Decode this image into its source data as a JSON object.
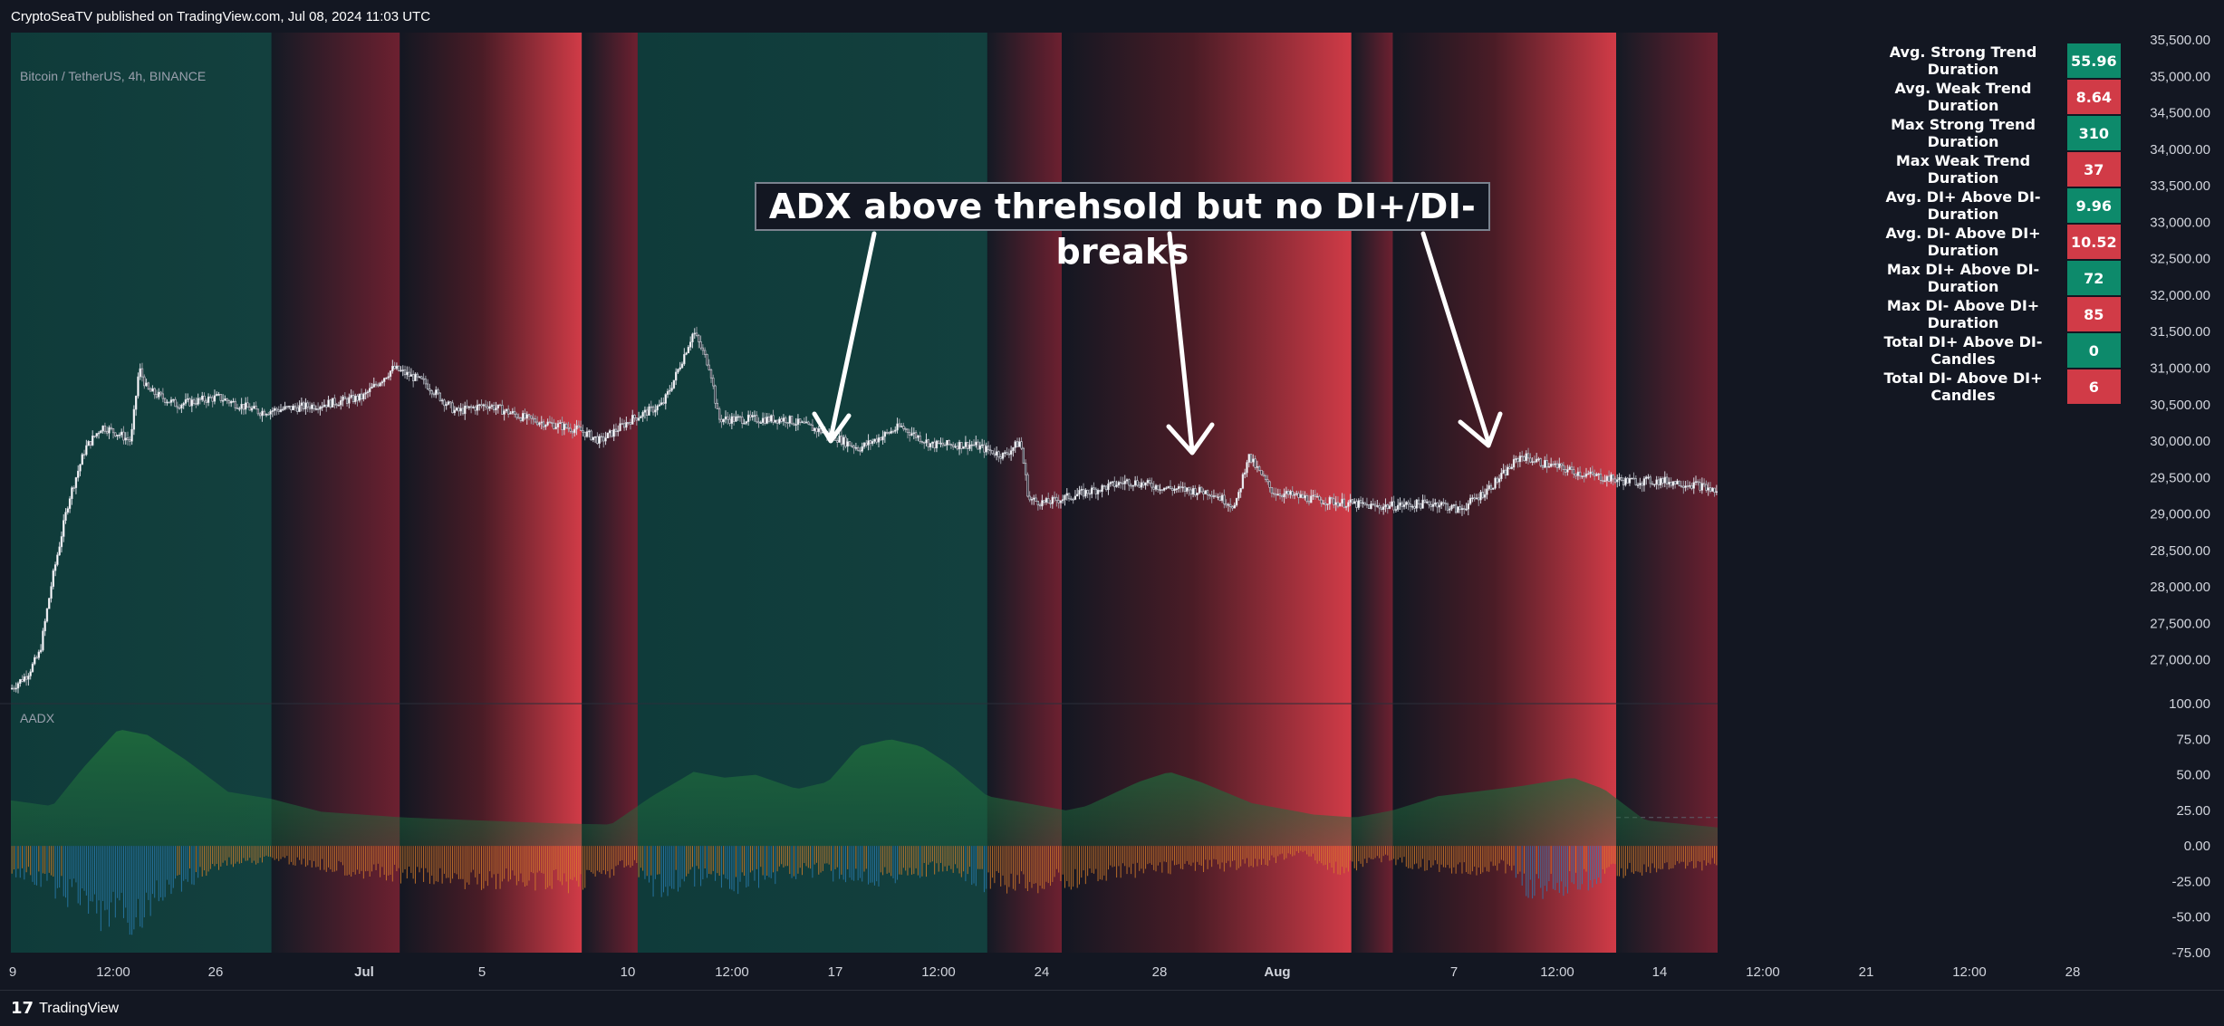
{
  "header": {
    "published": "CryptoSeaTV published on TradingView.com, Jul 08, 2024 11:03 UTC"
  },
  "footer": {
    "logo_mark": "17",
    "logo_text": "TradingView"
  },
  "symbol_label": "Bitcoin / TetherUS, 4h, BINANCE",
  "indicator_label": "AADX",
  "annotation": {
    "text": "ADX above threhsold but no DI+/DI- breaks"
  },
  "stats_table": [
    {
      "label": "Avg. Strong Trend Duration",
      "value": "55.96",
      "color": "green"
    },
    {
      "label": "Avg. Weak Trend Duration",
      "value": "8.64",
      "color": "red"
    },
    {
      "label": "Max Strong Trend Duration",
      "value": "310",
      "color": "green"
    },
    {
      "label": "Max Weak Trend Duration",
      "value": "37",
      "color": "red"
    },
    {
      "label": "Avg. DI+ Above DI- Duration",
      "value": "9.96",
      "color": "green"
    },
    {
      "label": "Avg. DI- Above DI+ Duration",
      "value": "10.52",
      "color": "red"
    },
    {
      "label": "Max DI+ Above DI- Duration",
      "value": "72",
      "color": "green"
    },
    {
      "label": "Max DI- Above DI+ Duration",
      "value": "85",
      "color": "red"
    },
    {
      "label": "Total DI+ Above DI- Candles",
      "value": "0",
      "color": "green"
    },
    {
      "label": "Total DI- Above DI+ Candles",
      "value": "6",
      "color": "red"
    }
  ],
  "colors": {
    "green": "#0d8a6b",
    "red": "#d13b47",
    "background": "#131722"
  },
  "chart_data": [
    {
      "type": "candlestick",
      "title": "Bitcoin / TetherUS, 4h, BINANCE",
      "ylim": [
        26400,
        35600
      ],
      "y_ticks": [
        "35,500.00",
        "35,000.00",
        "34,500.00",
        "34,000.00",
        "33,500.00",
        "33,000.00",
        "32,500.00",
        "32,000.00",
        "31,500.00",
        "31,000.00",
        "30,500.00",
        "30,000.00",
        "29,500.00",
        "29,000.00",
        "28,500.00",
        "28,000.00",
        "27,500.00",
        "27,000.00"
      ],
      "x_ticks": [
        "9",
        "12:00",
        "26",
        "Jul",
        "5",
        "10",
        "12:00",
        "17",
        "12:00",
        "24",
        "28",
        "Aug",
        "7",
        "12:00",
        "14",
        "12:00",
        "21",
        "12:00",
        "28"
      ],
      "price_path": [
        [
          0,
          26600
        ],
        [
          8,
          26800
        ],
        [
          14,
          27100
        ],
        [
          20,
          28100
        ],
        [
          28,
          29200
        ],
        [
          36,
          29900
        ],
        [
          44,
          30200
        ],
        [
          52,
          30100
        ],
        [
          58,
          30000
        ],
        [
          62,
          31000
        ],
        [
          66,
          30700
        ],
        [
          80,
          30500
        ],
        [
          100,
          30600
        ],
        [
          120,
          30400
        ],
        [
          150,
          30500
        ],
        [
          170,
          30600
        ],
        [
          185,
          31000
        ],
        [
          200,
          30800
        ],
        [
          215,
          30400
        ],
        [
          230,
          30500
        ],
        [
          250,
          30300
        ],
        [
          275,
          30150
        ],
        [
          285,
          30000
        ],
        [
          300,
          30300
        ],
        [
          315,
          30500
        ],
        [
          320,
          30800
        ],
        [
          330,
          31500
        ],
        [
          338,
          31000
        ],
        [
          342,
          30300
        ],
        [
          355,
          30300
        ],
        [
          375,
          30300
        ],
        [
          395,
          30100
        ],
        [
          410,
          29900
        ],
        [
          430,
          30200
        ],
        [
          445,
          29950
        ],
        [
          465,
          29950
        ],
        [
          480,
          29800
        ],
        [
          488,
          30000
        ],
        [
          492,
          29200
        ],
        [
          500,
          29150
        ],
        [
          520,
          29300
        ],
        [
          540,
          29450
        ],
        [
          560,
          29350
        ],
        [
          580,
          29300
        ],
        [
          592,
          29100
        ],
        [
          598,
          29800
        ],
        [
          610,
          29300
        ],
        [
          630,
          29200
        ],
        [
          660,
          29100
        ],
        [
          690,
          29150
        ],
        [
          700,
          29050
        ],
        [
          710,
          29250
        ],
        [
          720,
          29500
        ],
        [
          730,
          29800
        ],
        [
          740,
          29700
        ],
        [
          760,
          29550
        ],
        [
          780,
          29450
        ],
        [
          800,
          29450
        ],
        [
          815,
          29400
        ],
        [
          825,
          29300
        ]
      ],
      "background_zones": [
        {
          "from": 0,
          "to": 126,
          "state": "strong_up"
        },
        {
          "from": 126,
          "to": 188,
          "state": "weak"
        },
        {
          "from": 188,
          "to": 276,
          "state": "strong_down"
        },
        {
          "from": 276,
          "to": 303,
          "state": "weak"
        },
        {
          "from": 303,
          "to": 472,
          "state": "strong_up"
        },
        {
          "from": 472,
          "to": 508,
          "state": "weak"
        },
        {
          "from": 508,
          "to": 648,
          "state": "strong_down"
        },
        {
          "from": 648,
          "to": 668,
          "state": "weak"
        },
        {
          "from": 668,
          "to": 776,
          "state": "strong_down"
        },
        {
          "from": 776,
          "to": 825,
          "state": "weak"
        }
      ]
    },
    {
      "type": "area",
      "title": "AADX",
      "ylim": [
        -75,
        100
      ],
      "y_ticks": [
        "100.00",
        "75.00",
        "50.00",
        "25.00",
        "0.00",
        "-25.00",
        "-50.00",
        "-75.00"
      ],
      "threshold": 20,
      "adx_path": [
        [
          0,
          32
        ],
        [
          20,
          28
        ],
        [
          35,
          55
        ],
        [
          52,
          82
        ],
        [
          66,
          78
        ],
        [
          85,
          60
        ],
        [
          105,
          38
        ],
        [
          126,
          33
        ],
        [
          150,
          24
        ],
        [
          190,
          20
        ],
        [
          260,
          16
        ],
        [
          290,
          15
        ],
        [
          310,
          35
        ],
        [
          330,
          52
        ],
        [
          345,
          48
        ],
        [
          360,
          50
        ],
        [
          380,
          40
        ],
        [
          395,
          45
        ],
        [
          410,
          70
        ],
        [
          425,
          75
        ],
        [
          440,
          70
        ],
        [
          455,
          56
        ],
        [
          472,
          35
        ],
        [
          510,
          25
        ],
        [
          520,
          28
        ],
        [
          545,
          45
        ],
        [
          560,
          52
        ],
        [
          575,
          45
        ],
        [
          600,
          30
        ],
        [
          630,
          22
        ],
        [
          650,
          20
        ],
        [
          668,
          25
        ],
        [
          690,
          35
        ],
        [
          730,
          42
        ],
        [
          755,
          48
        ],
        [
          770,
          40
        ],
        [
          790,
          18
        ],
        [
          825,
          13
        ]
      ],
      "di_path": [
        [
          0,
          -20
        ],
        [
          30,
          -40
        ],
        [
          45,
          -55
        ],
        [
          60,
          -60
        ],
        [
          70,
          -40
        ],
        [
          100,
          -15
        ],
        [
          126,
          -10
        ],
        [
          190,
          -25
        ],
        [
          270,
          -30
        ],
        [
          300,
          -15
        ],
        [
          310,
          -35
        ],
        [
          330,
          -25
        ],
        [
          350,
          -30
        ],
        [
          380,
          -20
        ],
        [
          420,
          -25
        ],
        [
          450,
          -18
        ],
        [
          470,
          -30
        ],
        [
          500,
          -30
        ],
        [
          550,
          -18
        ],
        [
          600,
          -15
        ],
        [
          625,
          -5
        ],
        [
          640,
          -20
        ],
        [
          660,
          -10
        ],
        [
          700,
          -20
        ],
        [
          720,
          -15
        ],
        [
          735,
          -35
        ],
        [
          755,
          -30
        ],
        [
          780,
          -20
        ],
        [
          825,
          -15
        ]
      ]
    }
  ]
}
